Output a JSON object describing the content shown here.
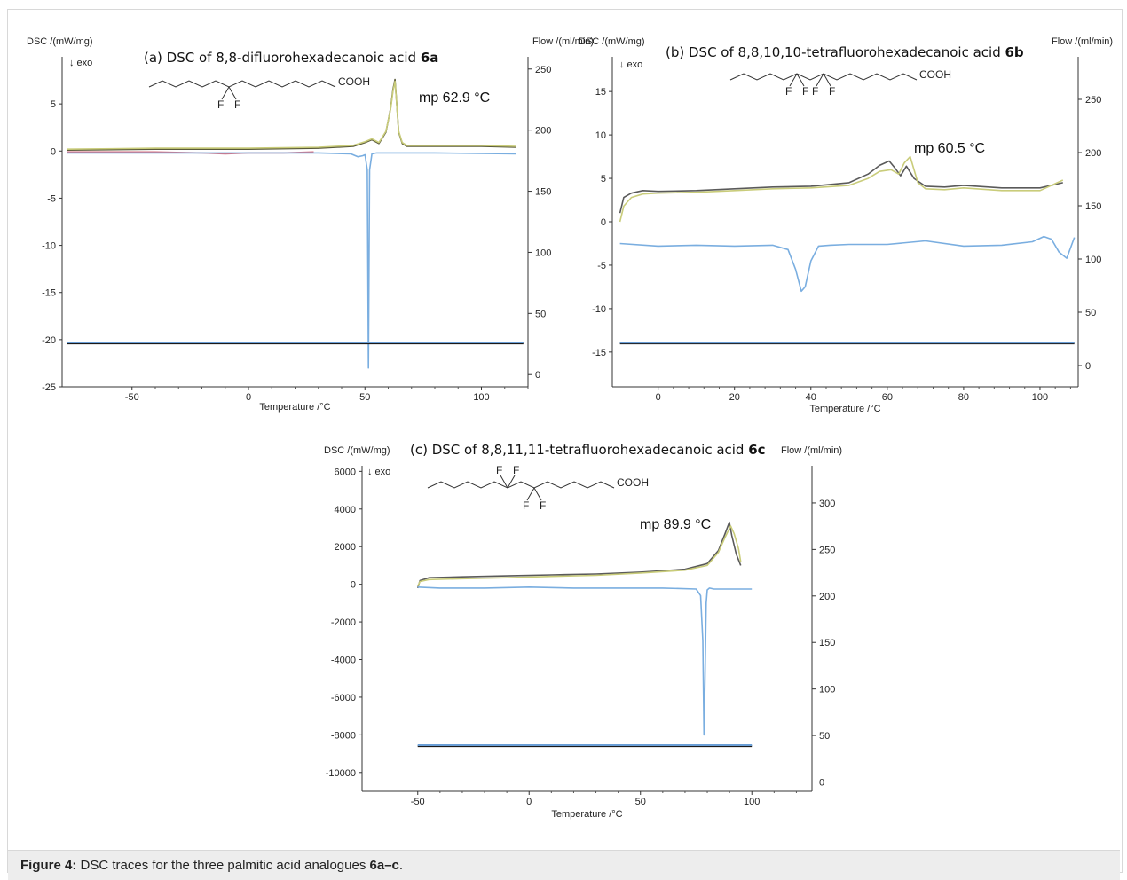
{
  "caption": {
    "label": "Figure 4:",
    "text": " DSC traces for the three palmitic acid analogues ",
    "compound": "6a–c",
    "end": "."
  },
  "chart_data": [
    {
      "type": "line",
      "title": "(a) DSC of 8,8-difluorohexadecanoic acid",
      "title_bold": "6a",
      "xlabel": "Temperature /°C",
      "ylabel_left": "DSC /(mW/mg)",
      "ylabel_right": "Flow /(ml/min)",
      "exo_label": "↓ exo",
      "annotation": "mp 62.9 °C",
      "structure": {
        "group": "COOH",
        "f_labels": [
          "F",
          "F"
        ]
      },
      "xlim": [
        -80,
        120
      ],
      "ylim": [
        -25,
        10
      ],
      "y2lim": [
        -10,
        260
      ],
      "xticks": [
        "-50",
        "0",
        "50",
        "100"
      ],
      "yticks": [
        "5",
        "0",
        "-5",
        "-10",
        "-15",
        "-20",
        "-25"
      ],
      "y2ticks": [
        "250",
        "200",
        "150",
        "100",
        "50",
        "0"
      ],
      "series": [
        {
          "color": "#5a5a3a",
          "x": [
            -78,
            -40,
            0,
            30,
            45,
            50,
            53,
            56,
            59,
            61,
            62,
            62.9,
            63.5,
            64.5,
            66,
            68,
            80,
            100,
            115
          ],
          "y": [
            0.1,
            0.2,
            0.2,
            0.3,
            0.5,
            0.9,
            1.2,
            0.8,
            2.0,
            4.5,
            6.5,
            7.6,
            5.5,
            2.0,
            0.8,
            0.5,
            0.5,
            0.5,
            0.4
          ]
        },
        {
          "color": "#c9cc7a",
          "x": [
            -78,
            -40,
            0,
            30,
            45,
            50,
            53,
            56,
            59,
            61,
            62,
            62.9,
            63.5,
            64.5,
            66,
            68,
            80,
            100,
            115
          ],
          "y": [
            0.2,
            0.3,
            0.3,
            0.4,
            0.6,
            1.0,
            1.3,
            0.9,
            2.1,
            4.4,
            6.3,
            7.4,
            5.4,
            2.1,
            0.9,
            0.6,
            0.6,
            0.6,
            0.5
          ]
        },
        {
          "color": "#d96a7a",
          "x": [
            -78,
            -40,
            -20,
            -10,
            0,
            15,
            28
          ],
          "y": [
            -0.1,
            -0.1,
            -0.2,
            -0.3,
            -0.2,
            -0.2,
            -0.1
          ]
        },
        {
          "color": "#7aaee0",
          "x": [
            -78,
            0,
            30,
            44,
            47,
            49,
            50,
            51,
            51.5,
            52,
            53,
            55,
            60,
            80,
            115
          ],
          "y": [
            -0.2,
            -0.2,
            -0.2,
            -0.3,
            -0.6,
            -0.5,
            -0.4,
            -2.0,
            -23.0,
            -2.0,
            -0.3,
            -0.2,
            -0.2,
            -0.2,
            -0.3
          ]
        },
        {
          "color": "#1a1a1a",
          "x": [
            -78,
            118
          ],
          "y": [
            -20.4,
            -20.4
          ]
        },
        {
          "color": "#6a9ed6",
          "x": [
            -78,
            118
          ],
          "y": [
            -20.3,
            -20.3
          ]
        }
      ]
    },
    {
      "type": "line",
      "title": "(b) DSC of 8,8,10,10-tetrafluorohexadecanoic acid",
      "title_bold": "6b",
      "xlabel": "Temperature /°C",
      "ylabel_left": "DSC /(mW/mg)",
      "ylabel_right": "Flow /(ml/min)",
      "exo_label": "↓ exo",
      "annotation": "mp 60.5 °C",
      "structure": {
        "group": "COOH",
        "f_labels": [
          "F",
          "F",
          "F",
          "F"
        ]
      },
      "xlim": [
        -12,
        110
      ],
      "ylim": [
        -19,
        19
      ],
      "y2lim": [
        -20,
        290
      ],
      "xticks": [
        "0",
        "20",
        "40",
        "60",
        "80",
        "100"
      ],
      "yticks": [
        "15",
        "10",
        "5",
        "0",
        "-5",
        "-10",
        "-15"
      ],
      "y2ticks": [
        "250",
        "200",
        "150",
        "100",
        "50",
        "0"
      ],
      "series": [
        {
          "color": "#5a5a5a",
          "x": [
            -10,
            -9,
            -7,
            -4,
            0,
            10,
            20,
            30,
            40,
            50,
            55,
            58,
            60.5,
            62,
            63.5,
            65,
            67,
            70,
            75,
            80,
            90,
            100,
            106
          ],
          "y": [
            1.0,
            2.8,
            3.3,
            3.6,
            3.5,
            3.6,
            3.8,
            4.0,
            4.1,
            4.5,
            5.5,
            6.5,
            7.0,
            6.2,
            5.3,
            6.4,
            5.0,
            4.1,
            4.0,
            4.2,
            3.9,
            3.9,
            4.5
          ]
        },
        {
          "color": "#c9cc7a",
          "x": [
            -10,
            -9,
            -7,
            -4,
            0,
            10,
            20,
            30,
            40,
            50,
            55,
            58,
            61,
            63,
            64.5,
            66,
            68,
            70,
            75,
            80,
            90,
            100,
            106
          ],
          "y": [
            0.0,
            1.8,
            2.8,
            3.2,
            3.3,
            3.4,
            3.6,
            3.8,
            3.9,
            4.2,
            5.0,
            5.8,
            6.0,
            5.5,
            6.8,
            7.5,
            4.5,
            3.8,
            3.7,
            3.9,
            3.6,
            3.6,
            4.8
          ]
        },
        {
          "color": "#7aaee0",
          "x": [
            -10,
            0,
            10,
            20,
            30,
            34,
            36,
            37.5,
            38.5,
            40,
            42,
            45,
            50,
            60,
            70,
            80,
            90,
            98,
            101,
            103,
            105,
            107,
            109
          ],
          "y": [
            -2.5,
            -2.8,
            -2.7,
            -2.8,
            -2.7,
            -3.2,
            -5.5,
            -8.0,
            -7.5,
            -4.5,
            -2.8,
            -2.7,
            -2.6,
            -2.6,
            -2.2,
            -2.8,
            -2.7,
            -2.3,
            -1.7,
            -2.0,
            -3.5,
            -4.2,
            -1.8
          ]
        },
        {
          "color": "#1a1a1a",
          "x": [
            -10,
            109
          ],
          "y": [
            -14.0,
            -14.0
          ]
        },
        {
          "color": "#6a9ed6",
          "x": [
            -10,
            109
          ],
          "y": [
            -13.9,
            -13.9
          ]
        }
      ]
    },
    {
      "type": "line",
      "title": "(c) DSC of 8,8,11,11-tetrafluorohexadecanoic acid",
      "title_bold": "6c",
      "xlabel": "Temperature /°C",
      "ylabel_left": "DSC /(mW/mg)",
      "ylabel_right": "Flow /(ml/min)",
      "exo_label": "↓ exo",
      "annotation": "mp 89.9 °C",
      "structure": {
        "group": "COOH",
        "f_labels": [
          "F",
          "F",
          "F",
          "F"
        ]
      },
      "xlim": [
        -75,
        127
      ],
      "ylim": [
        -11000,
        6300
      ],
      "y2lim": [
        -10,
        340
      ],
      "xticks": [
        "-50",
        "0",
        "50",
        "100"
      ],
      "yticks": [
        "6000",
        "4000",
        "2000",
        "0",
        "-2000",
        "-4000",
        "-6000",
        "-8000",
        "-10000"
      ],
      "y2ticks": [
        "300",
        "250",
        "200",
        "150",
        "100",
        "50",
        "0"
      ],
      "series": [
        {
          "color": "#5a5a5a",
          "x": [
            -50,
            -49,
            -45,
            -30,
            -10,
            10,
            30,
            50,
            70,
            80,
            85,
            88,
            89.9,
            91,
            93,
            95
          ],
          "y": [
            -200,
            200,
            350,
            400,
            450,
            500,
            550,
            650,
            800,
            1100,
            1800,
            2700,
            3300,
            2600,
            1600,
            1000
          ]
        },
        {
          "color": "#c9cc7a",
          "x": [
            -50,
            -49,
            -45,
            -30,
            -10,
            10,
            30,
            50,
            70,
            80,
            85,
            88,
            90.5,
            92,
            94,
            95
          ],
          "y": [
            -100,
            150,
            250,
            300,
            350,
            420,
            480,
            600,
            750,
            1000,
            1700,
            2500,
            3100,
            2700,
            1900,
            1200
          ]
        },
        {
          "color": "#7aaee0",
          "x": [
            -50,
            -40,
            -20,
            0,
            20,
            40,
            60,
            75,
            77,
            78,
            78.5,
            79,
            79.5,
            80,
            81,
            83,
            90,
            100
          ],
          "y": [
            -150,
            -200,
            -200,
            -150,
            -200,
            -200,
            -200,
            -250,
            -600,
            -3000,
            -8000,
            -5000,
            -1000,
            -300,
            -200,
            -250,
            -250,
            -250
          ]
        },
        {
          "color": "#1a1a1a",
          "x": [
            -50,
            100
          ],
          "y": [
            -8600,
            -8600
          ]
        },
        {
          "color": "#6a9ed6",
          "x": [
            -50,
            100
          ],
          "y": [
            -8550,
            -8550
          ]
        }
      ]
    }
  ]
}
